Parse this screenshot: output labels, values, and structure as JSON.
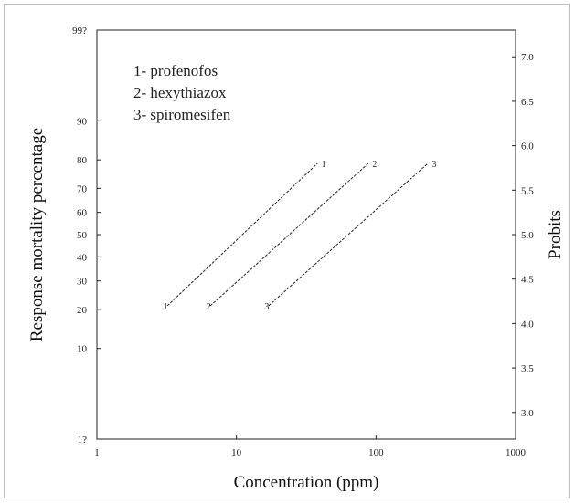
{
  "chart_data": {
    "type": "line",
    "title": "",
    "xlabel": "Concentration (ppm)",
    "ylabel": "Response mortality percentage",
    "ylabel_right": "Probits",
    "x_scale": "log",
    "xlim": [
      1,
      1000
    ],
    "x_ticks": [
      1,
      10,
      100,
      1000
    ],
    "x_tick_labels": [
      "1",
      "10",
      "100",
      "1000"
    ],
    "ylim": [
      2.7,
      7.3
    ],
    "y_left_ticks": [
      {
        "probit": 2.67,
        "label": "1?"
      },
      {
        "probit": 3.72,
        "label": "10"
      },
      {
        "probit": 4.16,
        "label": "20"
      },
      {
        "probit": 4.48,
        "label": "30"
      },
      {
        "probit": 4.75,
        "label": "40"
      },
      {
        "probit": 5.0,
        "label": "50"
      },
      {
        "probit": 5.25,
        "label": "60"
      },
      {
        "probit": 5.52,
        "label": "70"
      },
      {
        "probit": 5.84,
        "label": "80"
      },
      {
        "probit": 6.28,
        "label": "90"
      },
      {
        "probit": 7.33,
        "label": "99?"
      }
    ],
    "y_right_ticks": [
      3.0,
      3.5,
      4.0,
      4.5,
      5.0,
      5.5,
      6.0,
      6.5,
      7.0
    ],
    "y_right_tick_labels": [
      "3.0",
      "3.5",
      "4.0",
      "4.5",
      "5.0",
      "5.5",
      "6.0",
      "6.5",
      "7.0"
    ],
    "legend": [
      "1- profenofos",
      "2- hexythiazox",
      "3- spiromesifen"
    ],
    "legend_position": "top-left",
    "grid": false,
    "series": [
      {
        "label_start": "1",
        "label_end": "1",
        "x": [
          3.2,
          38
        ],
        "y": [
          4.2,
          5.8
        ]
      },
      {
        "label_start": "2",
        "label_end": "2",
        "x": [
          6.5,
          88
        ],
        "y": [
          4.2,
          5.8
        ]
      },
      {
        "label_start": "3",
        "label_end": "3",
        "x": [
          17,
          235
        ],
        "y": [
          4.2,
          5.8
        ]
      }
    ]
  }
}
